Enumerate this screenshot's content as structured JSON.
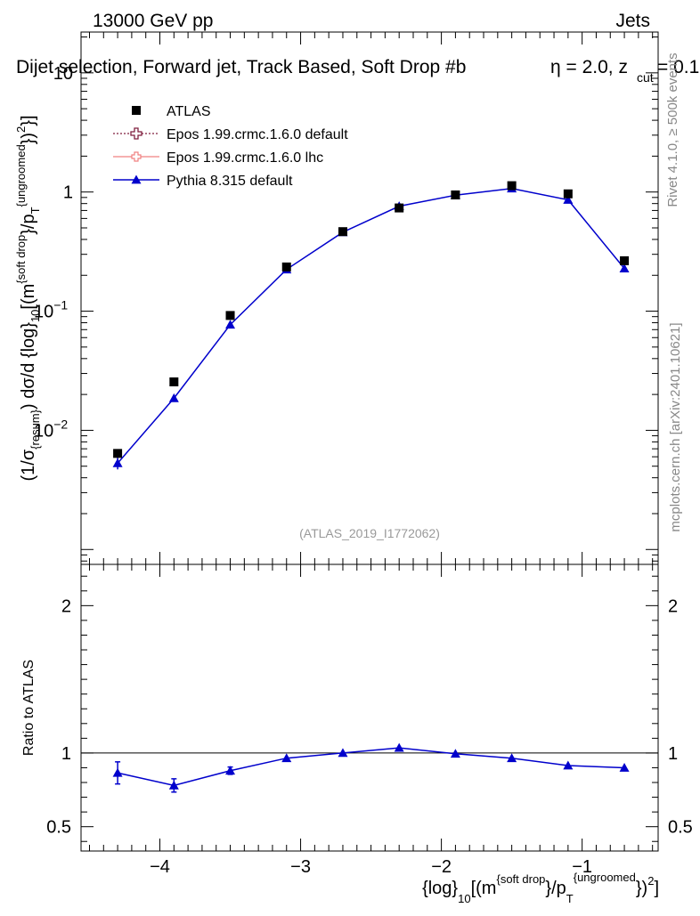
{
  "header": {
    "left": "13000 GeV pp",
    "right": "Jets"
  },
  "title": {
    "main": "Dijet selection, Forward jet, Track Based, Soft Drop #b",
    "beta": "η = 2.0, z",
    "cut_sub": "cut",
    "cut_val": " = 0.1"
  },
  "side_labels": {
    "rivet": "Rivet 4.1.0, ≥ 500k events",
    "mcplots": "mcplots.cern.ch [arXiv:2401.10621]"
  },
  "watermark": "(ATLAS_2019_I1772062)",
  "ylabel_top": {
    "p1": "(1/σ",
    "sub1": "{resum}",
    "p2": ") dσ/d {log}",
    "sub2": "10",
    "p3": "[(m",
    "sup1": "{soft drop",
    "p4": "}/p",
    "sub3": "T",
    "sup2": "{ungroomed",
    "p5": "})",
    "sup3": "2",
    "p6": "}]"
  },
  "ylabel_bottom": "Ratio to ATLAS",
  "xlabel": {
    "p1": "{log}",
    "sub1": "10",
    "p2": "[(m",
    "sup1": "{soft drop",
    "p3": "}/p",
    "sub2": "T",
    "sup2": "{ungroomed",
    "p4": "})",
    "sup3": "2",
    "p5": "]"
  },
  "legend": [
    {
      "label": "ATLAS",
      "marker": "square",
      "color": "#000000"
    },
    {
      "label": "Epos 1.99.crmc.1.6.0 default",
      "marker": "open-cross",
      "color": "#7f1f3f"
    },
    {
      "label": "Epos 1.99.crmc.1.6.0 lhc",
      "marker": "cross-line",
      "color": "#f08080"
    },
    {
      "label": "Pythia 8.315 default",
      "marker": "triangle",
      "color": "#0000cc"
    }
  ],
  "chart_data": {
    "type": "scatter",
    "x": [
      -4.3,
      -3.9,
      -3.5,
      -3.1,
      -2.7,
      -2.3,
      -1.9,
      -1.5,
      -1.1,
      -0.7
    ],
    "xlim": [
      -4.56,
      -0.46
    ],
    "x_ticks": [
      "−4",
      "−3",
      "−2",
      "−1"
    ],
    "top": {
      "yscale": "log",
      "ylim": [
        0.00075,
        22
      ],
      "y_ticks": [
        {
          "value": 0.01,
          "base": "10",
          "exp": "−2"
        },
        {
          "value": 0.1,
          "base": "10",
          "exp": "−1"
        },
        {
          "value": 1,
          "base": "1",
          "exp": ""
        },
        {
          "value": 10,
          "base": "10",
          "exp": ""
        }
      ],
      "series": [
        {
          "name": "ATLAS",
          "values": [
            0.0064,
            0.0255,
            0.092,
            0.235,
            0.465,
            0.735,
            0.945,
            1.13,
            0.965,
            0.265
          ]
        },
        {
          "name": "Pythia 8.315 default",
          "values": [
            0.0053,
            0.0186,
            0.077,
            0.224,
            0.46,
            0.76,
            0.94,
            1.07,
            0.86,
            0.228
          ],
          "err": [
            0.0006,
            0.0008,
            0.003,
            0.005,
            0.008,
            0.01,
            0.01,
            0.012,
            0.01,
            0.005
          ]
        }
      ]
    },
    "bottom": {
      "ylim": [
        0.335,
        2.28
      ],
      "y_ticks": [
        "0.5",
        "1",
        "2"
      ],
      "y_tick_values": [
        0.5,
        1,
        2
      ],
      "reference": 1,
      "series": [
        {
          "name": "Pythia 8.315 default / ATLAS",
          "values": [
            0.865,
            0.78,
            0.88,
            0.965,
            1.0,
            1.035,
            0.995,
            0.965,
            0.915,
            0.9
          ],
          "err": [
            0.075,
            0.045,
            0.025,
            0.012,
            0.01,
            0.01,
            0.01,
            0.01,
            0.01,
            0.01
          ]
        }
      ]
    }
  }
}
